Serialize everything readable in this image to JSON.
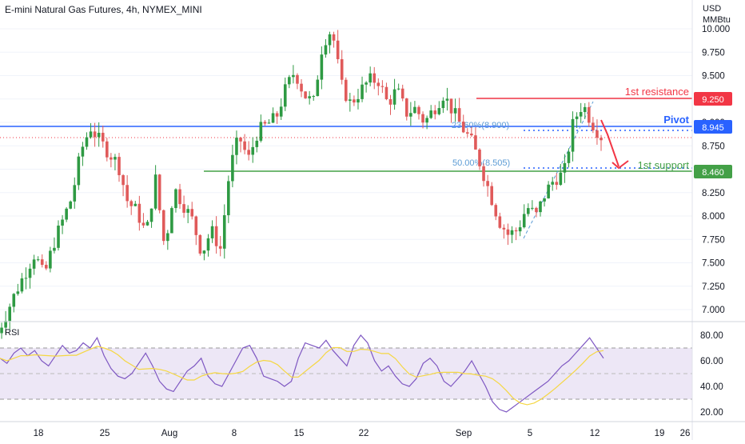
{
  "header": {
    "title": "E-mini Natural Gas Futures, 4h, NYMEX_MINI",
    "currency": "USD",
    "unit": "MMBtu"
  },
  "colors": {
    "up": "#26a69a",
    "up_candle": "#2e9a43",
    "down": "#e05a5a",
    "resistance": "#f23645",
    "pivot": "#2962ff",
    "support": "#43a047",
    "fib": "#5b9bd5",
    "rsi_line": "#7e57c2",
    "rsi_ma": "#f5d742",
    "rsi_band": "#ede7f6"
  },
  "chart_data": [
    {
      "type": "candlestick",
      "title": "E-mini Natural Gas Futures, 4h, NYMEX_MINI",
      "y_unit": "USD / MMBtu",
      "ylim": [
        6.85,
        10.05
      ],
      "y_ticks": [
        "10.000",
        "9.750",
        "9.500",
        "9.250",
        "9.000",
        "8.750",
        "8.500",
        "8.250",
        "8.000",
        "7.750",
        "7.500",
        "7.250",
        "7.000"
      ],
      "x_ticks": [
        "18",
        "25",
        "Aug",
        "8",
        "15",
        "22",
        "Sep",
        "5",
        "12",
        "19",
        "26"
      ],
      "close_path": {
        "x": [
          0,
          2,
          4,
          5,
          6,
          8,
          9,
          10,
          11,
          13,
          14,
          15,
          16,
          17,
          18,
          19,
          21,
          22,
          23,
          24,
          25,
          26,
          27,
          28,
          30,
          31,
          32,
          33,
          34,
          35,
          36,
          37,
          38,
          40,
          41,
          42,
          43,
          44,
          45,
          46,
          47,
          48,
          50,
          51,
          52,
          53,
          54,
          55,
          56,
          57,
          58,
          59,
          60,
          61,
          62,
          63,
          64,
          65
        ],
        "close": [
          6.75,
          7.2,
          7.6,
          7.35,
          7.7,
          8.2,
          8.7,
          8.95,
          8.8,
          8.55,
          8.15,
          8.05,
          7.8,
          8.4,
          7.65,
          8.3,
          7.95,
          7.6,
          7.85,
          7.65,
          8.5,
          8.85,
          8.6,
          8.9,
          9.05,
          9.35,
          9.55,
          9.3,
          9.2,
          9.85,
          10.0,
          9.4,
          9.2,
          9.45,
          9.45,
          9.2,
          9.35,
          9.1,
          9.15,
          9.0,
          9.15,
          9.3,
          8.95,
          8.8,
          8.55,
          8.25,
          7.95,
          7.8,
          7.85,
          8.1,
          8.0,
          8.25,
          8.4,
          8.45,
          9.0,
          9.2,
          9.0,
          8.85
        ]
      },
      "levels": [
        {
          "name": "1st resistance",
          "value": 9.25,
          "label": "9.250"
        },
        {
          "name": "Pivot",
          "value": 8.945,
          "label": "8.945"
        },
        {
          "name": "1st support",
          "value": 8.46,
          "label": "8.460"
        }
      ],
      "fib_labels": [
        "23.60%(8.900)",
        "50.00%(8.505)"
      ],
      "last_price": 8.86
    },
    {
      "type": "line",
      "title": "RSI",
      "ylim": [
        14,
        86
      ],
      "y_ticks": [
        "80.00",
        "60.00",
        "40.00",
        "20.00"
      ],
      "bands": [
        70,
        50,
        30
      ],
      "rsi": [
        62,
        58,
        66,
        70,
        64,
        68,
        60,
        56,
        64,
        72,
        66,
        68,
        74,
        70,
        78,
        64,
        54,
        48,
        46,
        50,
        58,
        66,
        56,
        44,
        38,
        36,
        44,
        52,
        56,
        62,
        48,
        42,
        40,
        50,
        60,
        70,
        72,
        62,
        48,
        46,
        44,
        40,
        44,
        62,
        74,
        72,
        70,
        76,
        68,
        62,
        56,
        72,
        80,
        74,
        60,
        52,
        56,
        48,
        42,
        40,
        46,
        58,
        62,
        56,
        44,
        40,
        46,
        52,
        60,
        50,
        40,
        28,
        22,
        20,
        24,
        28,
        32,
        36,
        40,
        44,
        50,
        56,
        60,
        66,
        72,
        78,
        70,
        62
      ]
    }
  ]
}
